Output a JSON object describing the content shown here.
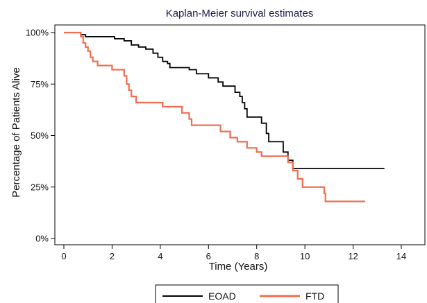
{
  "chart_data": {
    "type": "line",
    "title": "Kaplan-Meier survival estimates",
    "xlabel": "Time (Years)",
    "ylabel": "Percentage of Patients Alive",
    "xlim": [
      0,
      14
    ],
    "ylim": [
      0,
      100
    ],
    "xticks": [
      0,
      2,
      4,
      6,
      8,
      10,
      12,
      14
    ],
    "xtick_labels": [
      "0",
      "2",
      "4",
      "6",
      "8",
      "10",
      "12",
      "14"
    ],
    "yticks": [
      0,
      25,
      50,
      75,
      100
    ],
    "ytick_labels": [
      "0%",
      "25%",
      "50%",
      "75%",
      "100%"
    ],
    "grid": false,
    "legend_position": "bottom",
    "series": [
      {
        "name": "EOAD",
        "color": "#000000",
        "step_points": [
          [
            0,
            100
          ],
          [
            0.6,
            100
          ],
          [
            0.7,
            99
          ],
          [
            0.9,
            98
          ],
          [
            1.9,
            98
          ],
          [
            2.1,
            97
          ],
          [
            2.5,
            96
          ],
          [
            2.8,
            94
          ],
          [
            3.1,
            93
          ],
          [
            3.4,
            92
          ],
          [
            3.7,
            90
          ],
          [
            3.9,
            88
          ],
          [
            4.1,
            86
          ],
          [
            4.3,
            85
          ],
          [
            4.4,
            83
          ],
          [
            5.2,
            82
          ],
          [
            5.5,
            80
          ],
          [
            6.0,
            78
          ],
          [
            6.4,
            76
          ],
          [
            6.6,
            74
          ],
          [
            7.1,
            71
          ],
          [
            7.3,
            69
          ],
          [
            7.4,
            66
          ],
          [
            7.5,
            63
          ],
          [
            7.6,
            59
          ],
          [
            8.2,
            56
          ],
          [
            8.4,
            51
          ],
          [
            8.5,
            47
          ],
          [
            9.1,
            42
          ],
          [
            9.3,
            38
          ],
          [
            9.5,
            34
          ],
          [
            13.3,
            34
          ]
        ]
      },
      {
        "name": "FTD",
        "color": "#f26c4f",
        "step_points": [
          [
            0,
            100
          ],
          [
            0.5,
            100
          ],
          [
            0.7,
            98
          ],
          [
            0.8,
            95
          ],
          [
            0.9,
            93
          ],
          [
            1.0,
            91
          ],
          [
            1.1,
            88
          ],
          [
            1.2,
            86
          ],
          [
            1.4,
            84
          ],
          [
            2.0,
            82
          ],
          [
            2.5,
            79
          ],
          [
            2.6,
            75
          ],
          [
            2.7,
            72
          ],
          [
            2.8,
            69
          ],
          [
            3.0,
            66
          ],
          [
            4.1,
            64
          ],
          [
            4.9,
            61
          ],
          [
            5.2,
            58
          ],
          [
            5.3,
            55
          ],
          [
            6.5,
            52
          ],
          [
            6.9,
            49
          ],
          [
            7.2,
            47
          ],
          [
            7.6,
            44
          ],
          [
            8.0,
            42
          ],
          [
            8.2,
            40
          ],
          [
            9.3,
            37
          ],
          [
            9.5,
            33
          ],
          [
            9.7,
            29
          ],
          [
            9.9,
            25
          ],
          [
            10.8,
            22
          ],
          [
            10.85,
            18
          ],
          [
            12.5,
            18
          ]
        ]
      }
    ]
  }
}
